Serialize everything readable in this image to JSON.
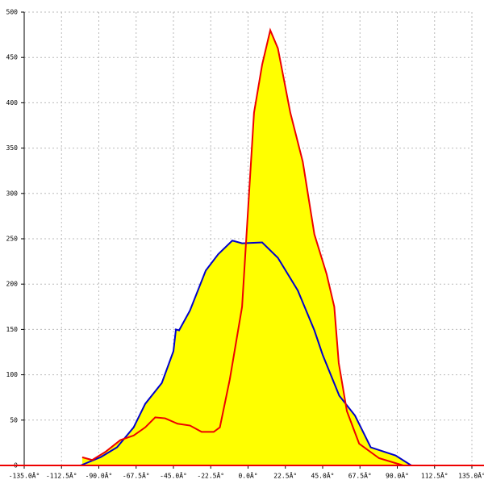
{
  "chart_data": {
    "type": "area",
    "xlim": [
      -135,
      135
    ],
    "ylim": [
      0,
      500
    ],
    "xticks": [
      {
        "value": -135,
        "label": "-135.0Â°"
      },
      {
        "value": -112.5,
        "label": "-112.5Â°"
      },
      {
        "value": -90,
        "label": "-90.0Â°"
      },
      {
        "value": -67.5,
        "label": "-67.5Â°"
      },
      {
        "value": -45,
        "label": "-45.0Â°"
      },
      {
        "value": -22.5,
        "label": "-22.5Â°"
      },
      {
        "value": 0,
        "label": "0.0Â°"
      },
      {
        "value": 22.5,
        "label": "22.5Â°"
      },
      {
        "value": 45,
        "label": "45.0Â°"
      },
      {
        "value": 67.5,
        "label": "67.5Â°"
      },
      {
        "value": 90,
        "label": "90.0Â°"
      },
      {
        "value": 112.5,
        "label": "112.5Â°"
      },
      {
        "value": 135,
        "label": "135.0Â°"
      }
    ],
    "yticks": [
      0,
      50,
      100,
      150,
      200,
      250,
      300,
      350,
      400,
      450,
      500
    ],
    "grid": true,
    "fill": "#ffff00",
    "series": [
      {
        "color": "#0000cc",
        "x": [
          -101,
          -89,
          -79,
          -69,
          -62,
          -52,
          -45,
          -43.5,
          -41.6,
          -35,
          -25.5,
          -18,
          -9.5,
          -3.6,
          8.5,
          18,
          30,
          40,
          45,
          55,
          64.5,
          74,
          89,
          98.5
        ],
        "values": [
          0,
          9,
          20,
          42,
          68,
          91,
          126,
          150,
          149,
          171,
          215,
          233,
          248,
          245,
          246,
          229,
          193,
          149,
          122,
          77,
          55,
          20,
          11,
          0
        ]
      },
      {
        "color": "#ee0000",
        "x": [
          -100,
          -94,
          -86,
          -77,
          -69,
          -62,
          -56,
          -50,
          -42.5,
          -35,
          -28,
          -20.7,
          -17,
          -11,
          -3.6,
          3.6,
          8.5,
          13.4,
          18,
          25.5,
          33,
          40,
          47.4,
          52,
          54.7,
          59.6,
          67,
          79,
          93.6
        ],
        "values": [
          9,
          6,
          15,
          28,
          33,
          42,
          53,
          52,
          46,
          44,
          37,
          37,
          42,
          95,
          175,
          389,
          442,
          480,
          460,
          389,
          335,
          255,
          211,
          175,
          113,
          60,
          24,
          8,
          0
        ]
      }
    ]
  }
}
